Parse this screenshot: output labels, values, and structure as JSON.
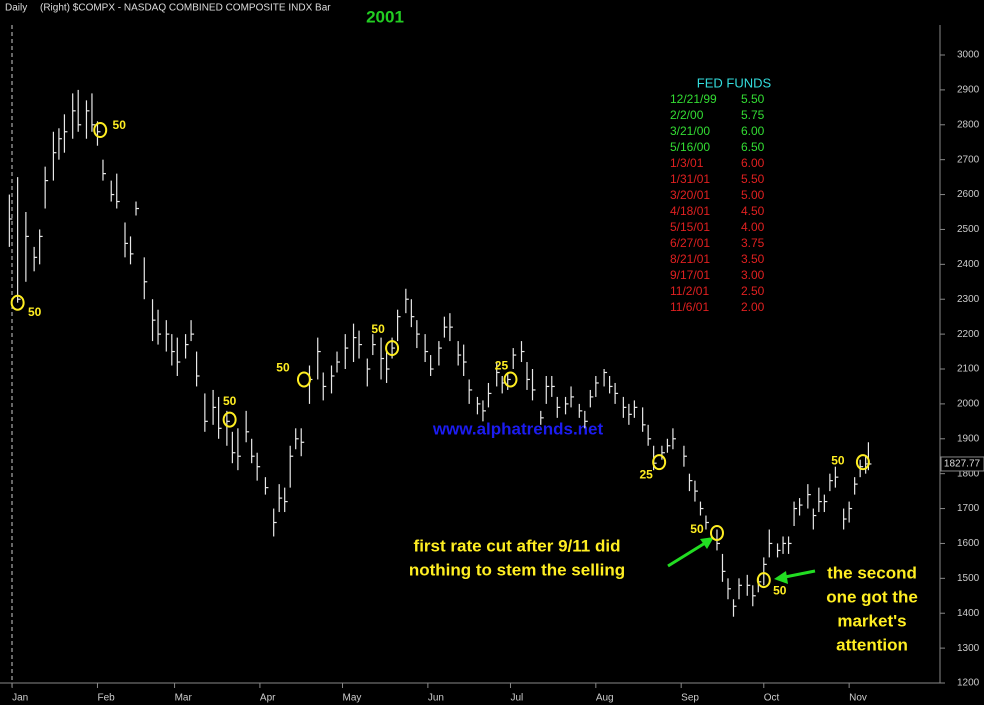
{
  "chart_data": {
    "type": "hlc",
    "header": "Daily",
    "subtitle": "(Right) $COMPX - NASDAQ COMBINED COMPOSITE INDX Bar",
    "title": "2001",
    "watermark": "www.alphatrends.net",
    "color": "#e8e8e8",
    "xlim": [
      -3.4,
      338
    ],
    "ylim": [
      1200,
      3086
    ],
    "yticks": [
      1200,
      1300,
      1400,
      1500,
      1600,
      1700,
      1800,
      1900,
      2000,
      2100,
      2200,
      2300,
      2400,
      2500,
      2600,
      2700,
      2800,
      2900,
      3000
    ],
    "xticks": [
      {
        "value": 1,
        "label": "Jan"
      },
      {
        "value": 32,
        "label": "Feb"
      },
      {
        "value": 60,
        "label": "Mar"
      },
      {
        "value": 91,
        "label": "Apr"
      },
      {
        "value": 121,
        "label": "May"
      },
      {
        "value": 152,
        "label": "Jun"
      },
      {
        "value": 182,
        "label": "Jul"
      },
      {
        "value": 213,
        "label": "Aug"
      },
      {
        "value": 244,
        "label": "Sep"
      },
      {
        "value": 274,
        "label": "Oct"
      },
      {
        "value": 305,
        "label": "Nov"
      }
    ],
    "x": [
      0,
      3,
      6,
      9,
      11,
      13,
      16,
      18,
      20,
      23,
      25,
      28,
      30,
      32,
      34,
      37,
      39,
      42,
      44,
      46,
      49,
      52,
      54,
      57,
      59,
      61,
      64,
      66,
      68,
      71,
      74,
      76,
      79,
      81,
      83,
      86,
      88,
      90,
      93,
      96,
      98,
      100,
      102,
      104,
      106,
      109,
      112,
      114,
      117,
      119,
      122,
      125,
      127,
      130,
      132,
      135,
      137,
      139,
      141,
      144,
      146,
      148,
      151,
      153,
      156,
      158,
      160,
      163,
      165,
      167,
      170,
      172,
      174,
      177,
      179,
      181,
      183,
      186,
      188,
      190,
      193,
      195,
      197,
      199,
      202,
      204,
      207,
      209,
      211,
      213,
      216,
      218,
      220,
      223,
      225,
      227,
      230,
      232,
      234,
      237,
      239,
      241,
      245,
      247,
      249,
      251,
      253,
      257,
      259,
      261,
      263,
      265,
      268,
      270,
      272,
      274,
      276,
      279,
      281,
      283,
      285,
      287,
      290,
      292,
      294,
      296,
      298,
      300,
      303,
      305,
      307,
      309,
      311,
      312
    ],
    "high": [
      2600,
      2650,
      2550,
      2450,
      2500,
      2680,
      2780,
      2790,
      2830,
      2890,
      2900,
      2870,
      2890,
      2810,
      2700,
      2640,
      2660,
      2520,
      2480,
      2580,
      2420,
      2300,
      2270,
      2240,
      2200,
      2190,
      2200,
      2240,
      2150,
      2030,
      2040,
      2020,
      1980,
      1920,
      1930,
      1980,
      1900,
      1860,
      1790,
      1700,
      1770,
      1760,
      1880,
      1930,
      1930,
      2110,
      2190,
      2090,
      2110,
      2150,
      2200,
      2230,
      2210,
      2130,
      2200,
      2190,
      2150,
      2190,
      2270,
      2330,
      2300,
      2240,
      2200,
      2140,
      2180,
      2250,
      2260,
      2180,
      2170,
      2070,
      2020,
      2010,
      2060,
      2120,
      2080,
      2090,
      2160,
      2180,
      2120,
      2100,
      1980,
      2080,
      2080,
      2020,
      2020,
      2050,
      2000,
      1980,
      2040,
      2080,
      2100,
      2080,
      2060,
      2020,
      2000,
      2010,
      1990,
      1940,
      1880,
      1880,
      1900,
      1930,
      1880,
      1800,
      1780,
      1720,
      1680,
      1640,
      1570,
      1500,
      1440,
      1500,
      1510,
      1480,
      1500,
      1560,
      1640,
      1600,
      1620,
      1620,
      1720,
      1730,
      1770,
      1700,
      1760,
      1740,
      1800,
      1820,
      1700,
      1720,
      1790,
      1840,
      1850,
      1890
    ],
    "low": [
      2450,
      2290,
      2350,
      2380,
      2400,
      2560,
      2640,
      2700,
      2720,
      2760,
      2780,
      2760,
      2780,
      2740,
      2640,
      2580,
      2560,
      2420,
      2400,
      2540,
      2300,
      2180,
      2170,
      2150,
      2110,
      2080,
      2130,
      2180,
      2050,
      1920,
      1940,
      1900,
      1880,
      1830,
      1810,
      1890,
      1830,
      1780,
      1740,
      1620,
      1690,
      1690,
      1760,
      1870,
      1850,
      2000,
      2070,
      2010,
      2030,
      2090,
      2100,
      2120,
      2130,
      2050,
      2140,
      2070,
      2060,
      2130,
      2180,
      2260,
      2220,
      2160,
      2120,
      2080,
      2110,
      2190,
      2180,
      2110,
      2080,
      2000,
      1970,
      1950,
      1990,
      2050,
      2030,
      2040,
      2100,
      2120,
      2040,
      2010,
      1940,
      2000,
      2020,
      1960,
      1970,
      1990,
      1960,
      1930,
      1990,
      2020,
      2050,
      2030,
      2000,
      1960,
      1940,
      1960,
      1920,
      1880,
      1810,
      1840,
      1860,
      1870,
      1820,
      1750,
      1720,
      1680,
      1640,
      1580,
      1490,
      1440,
      1390,
      1440,
      1450,
      1420,
      1460,
      1480,
      1560,
      1560,
      1570,
      1570,
      1650,
      1680,
      1700,
      1640,
      1690,
      1690,
      1750,
      1760,
      1640,
      1660,
      1740,
      1790,
      1800,
      1810
    ],
    "close": [
      2530,
      2300,
      2480,
      2420,
      2480,
      2640,
      2720,
      2760,
      2780,
      2840,
      2800,
      2840,
      2800,
      2780,
      2660,
      2600,
      2580,
      2460,
      2430,
      2560,
      2350,
      2240,
      2200,
      2200,
      2150,
      2120,
      2170,
      2200,
      2080,
      1950,
      1990,
      1930,
      1950,
      1860,
      1850,
      1920,
      1850,
      1820,
      1760,
      1660,
      1730,
      1720,
      1850,
      1900,
      1890,
      2070,
      2150,
      2050,
      2080,
      2120,
      2160,
      2190,
      2170,
      2100,
      2170,
      2130,
      2100,
      2160,
      2250,
      2300,
      2250,
      2200,
      2150,
      2100,
      2160,
      2220,
      2220,
      2140,
      2120,
      2040,
      2000,
      1980,
      2030,
      2090,
      2060,
      2070,
      2140,
      2150,
      2070,
      2040,
      1960,
      2050,
      2050,
      1990,
      2000,
      2020,
      1980,
      1950,
      2020,
      2060,
      2090,
      2050,
      2030,
      1990,
      1970,
      1990,
      1940,
      1900,
      1830,
      1860,
      1880,
      1900,
      1850,
      1780,
      1750,
      1700,
      1660,
      1600,
      1520,
      1470,
      1420,
      1480,
      1480,
      1450,
      1490,
      1540,
      1600,
      1580,
      1600,
      1600,
      1700,
      1710,
      1740,
      1680,
      1720,
      1720,
      1780,
      1790,
      1670,
      1700,
      1770,
      1820,
      1828,
      1827.77
    ],
    "annotations": [
      {
        "label": "50",
        "x": 3,
        "y": 2290
      },
      {
        "label": "50",
        "x": 33,
        "y": 2785
      },
      {
        "label": "50",
        "x": 80,
        "y": 1955
      },
      {
        "label": "50",
        "x": 107,
        "y": 2070
      },
      {
        "label": "50",
        "x": 139,
        "y": 2160
      },
      {
        "label": "25",
        "x": 182,
        "y": 2070
      },
      {
        "label": "25",
        "x": 236,
        "y": 1833
      },
      {
        "label": "50",
        "x": 257,
        "y": 1630
      },
      {
        "label": "50",
        "x": 274,
        "y": 1495
      },
      {
        "label": "50",
        "x": 310,
        "y": 1833
      }
    ],
    "note_left": [
      "first rate cut after 9/11 did",
      "nothing to stem the selling"
    ],
    "note_right": [
      "the second",
      "one got the",
      "market's",
      "attention"
    ],
    "fed_funds": {
      "title": "FED FUNDS",
      "rows": [
        [
          "12/21/99",
          "5.50",
          "#33dd33"
        ],
        [
          "2/2/00",
          "5.75",
          "#33dd33"
        ],
        [
          "3/21/00",
          "6.00",
          "#33dd33"
        ],
        [
          "5/16/00",
          "6.50",
          "#33dd33"
        ],
        [
          "1/3/01",
          "6.00",
          "#e02020"
        ],
        [
          "1/31/01",
          "5.50",
          "#e02020"
        ],
        [
          "3/20/01",
          "5.00",
          "#e02020"
        ],
        [
          "4/18/01",
          "4.50",
          "#e02020"
        ],
        [
          "5/15/01",
          "4.00",
          "#e02020"
        ],
        [
          "6/27/01",
          "3.75",
          "#e02020"
        ],
        [
          "8/21/01",
          "3.50",
          "#e02020"
        ],
        [
          "9/17/01",
          "3.00",
          "#e02020"
        ],
        [
          "11/2/01",
          "2.50",
          "#e02020"
        ],
        [
          "11/6/01",
          "2.00",
          "#e02020"
        ]
      ]
    }
  }
}
